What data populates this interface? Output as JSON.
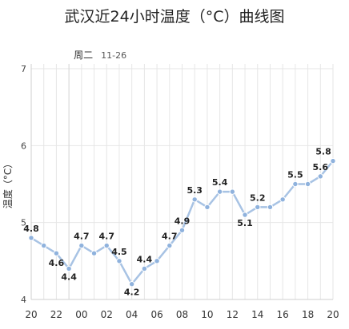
{
  "chart_data": {
    "type": "line",
    "title": "武汉近24小时温度（°C）曲线图",
    "ylabel": "温度（°C）",
    "xlabel": "",
    "ylim": [
      4,
      7
    ],
    "yticks": [
      "4",
      "5",
      "6",
      "7"
    ],
    "date_marker": {
      "day": "周二",
      "date": "11-26"
    },
    "x_tick_labels": [
      "20",
      "22",
      "00",
      "02",
      "04",
      "06",
      "08",
      "10",
      "12",
      "14",
      "16",
      "18",
      "20"
    ],
    "x": [
      "20",
      "21",
      "22",
      "23",
      "00",
      "01",
      "02",
      "03",
      "04",
      "05",
      "06",
      "07",
      "08",
      "09",
      "10",
      "11",
      "12",
      "13",
      "14",
      "15",
      "16",
      "17",
      "18",
      "19",
      "20"
    ],
    "series": [
      {
        "values": [
          4.8,
          4.7,
          4.6,
          4.4,
          4.7,
          4.6,
          4.7,
          4.5,
          4.2,
          4.4,
          4.5,
          4.7,
          4.9,
          5.3,
          5.2,
          5.4,
          5.4,
          5.1,
          5.2,
          5.2,
          5.3,
          5.5,
          5.5,
          5.6,
          5.8
        ],
        "labels": [
          "4.8",
          "",
          "4.6",
          "4.4",
          "4.7",
          "",
          "4.7",
          "4.5",
          "4.2",
          "4.4",
          "",
          "4.7",
          "4.9",
          "5.3",
          "",
          "5.4",
          "",
          "5.1",
          "5.2",
          "",
          "",
          "5.5",
          "",
          "5.6",
          "5.8"
        ]
      }
    ],
    "grid": true,
    "colors": {
      "line": "#a8c3e4",
      "marker": "#8fb2dd",
      "grid": "#e6e6e6",
      "axis": "#cfcfcf"
    }
  }
}
